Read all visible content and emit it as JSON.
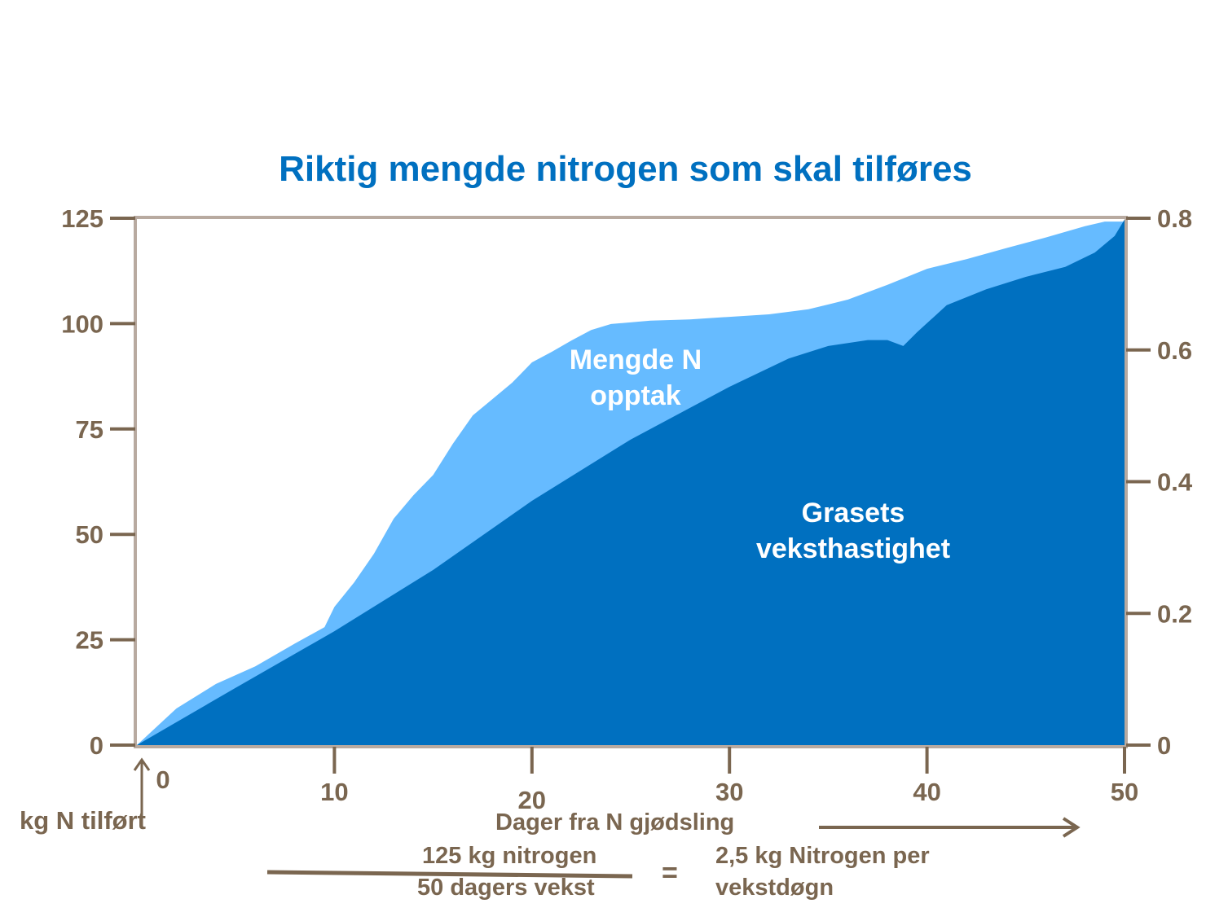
{
  "chart_data": {
    "type": "area",
    "title": "Riktig mengde nitrogen som skal tilføres",
    "xlabel": "Dager fra N gjødsling",
    "ylabel_left": "kg N tilført",
    "xlim": [
      0,
      50
    ],
    "ylim_left": [
      0,
      125
    ],
    "ylim_right": [
      0,
      0.8
    ],
    "x_ticks": [
      0,
      10,
      20,
      30,
      40,
      50
    ],
    "y_ticks_left": [
      0,
      25,
      50,
      75,
      100,
      125
    ],
    "y_ticks_right": [
      "0",
      "0.2",
      "0.4",
      "0.6",
      "0.8"
    ],
    "y_right_values": [
      0,
      0.2,
      0.4,
      0.6,
      0.8
    ],
    "grid": false,
    "series": [
      {
        "name": "Mengde N opptak",
        "axis": "left",
        "color": "#66bbff",
        "x": [
          0,
          2,
          4,
          6,
          8,
          9.5,
          10,
          11,
          12,
          13,
          14,
          15,
          16,
          17,
          18,
          19,
          20,
          21,
          22,
          23,
          24,
          26,
          28,
          30,
          32,
          34,
          36,
          38,
          40,
          42,
          44,
          46,
          48,
          49,
          50
        ],
        "y": [
          0,
          8.7,
          14.5,
          18.7,
          24.1,
          28.0,
          32.8,
          38.6,
          45.4,
          53.7,
          59.3,
          64.1,
          71.5,
          78.2,
          82.1,
          86.0,
          90.8,
          93.3,
          96.0,
          98.5,
          99.9,
          100.7,
          101.0,
          101.6,
          102.2,
          103.4,
          105.7,
          109.2,
          113.0,
          115.3,
          117.9,
          120.4,
          123.1,
          124.2,
          124.2
        ]
      },
      {
        "name": "Grasets veksthastighet",
        "axis": "right",
        "color": "#0070c0",
        "x": [
          0,
          5,
          10,
          15,
          20,
          25,
          30,
          33,
          35,
          37,
          38,
          38.8,
          39.5,
          41,
          43,
          45,
          47,
          48.5,
          49.5,
          50
        ],
        "y": [
          0,
          0.087,
          0.173,
          0.266,
          0.371,
          0.464,
          0.544,
          0.587,
          0.606,
          0.615,
          0.615,
          0.606,
          0.627,
          0.668,
          0.692,
          0.711,
          0.726,
          0.748,
          0.773,
          0.798
        ]
      }
    ],
    "labels": {
      "uptake_line1": "Mengde N",
      "uptake_line2": "opptak",
      "growth_line1": "Grasets",
      "growth_line2": "veksthastighet"
    },
    "formula": {
      "numerator": "125 kg nitrogen",
      "denominator": "50 dagers vekst",
      "equals": "=",
      "result_line1": "2,5 kg Nitrogen per",
      "result_line2": "vekstdøgn"
    },
    "colors": {
      "title": "#0070c0",
      "axis_text": "#7a6650",
      "frame": "#b8aaa0"
    }
  }
}
